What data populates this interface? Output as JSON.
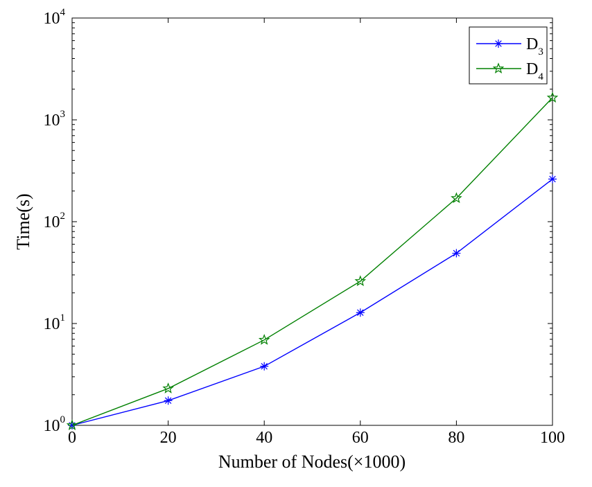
{
  "chart_data": {
    "type": "line",
    "xlabel": "Number of Nodes(×1000)",
    "ylabel": "Time(s)",
    "xlim": [
      0,
      100
    ],
    "ylim": [
      1,
      10000
    ],
    "y_scale": "log",
    "grid": false,
    "legend_position": "top-right",
    "x_ticks": [
      {
        "value": 0,
        "label": "0"
      },
      {
        "value": 20,
        "label": "20"
      },
      {
        "value": 40,
        "label": "40"
      },
      {
        "value": 60,
        "label": "60"
      },
      {
        "value": 80,
        "label": "80"
      },
      {
        "value": 100,
        "label": "100"
      }
    ],
    "y_ticks": [
      {
        "value": 1,
        "base": "10",
        "exp": "0"
      },
      {
        "value": 10,
        "base": "10",
        "exp": "1"
      },
      {
        "value": 100,
        "base": "10",
        "exp": "2"
      },
      {
        "value": 1000,
        "base": "10",
        "exp": "3"
      },
      {
        "value": 10000,
        "base": "10",
        "exp": "4"
      }
    ],
    "x": [
      0,
      20,
      40,
      60,
      80,
      100
    ],
    "series": [
      {
        "name": "D3",
        "name_main": "D",
        "name_sub": "3",
        "marker": "asterisk",
        "color": "#0000ff",
        "values": [
          1.0,
          1.75,
          3.8,
          12.8,
          49,
          262
        ]
      },
      {
        "name": "D4",
        "name_main": "D",
        "name_sub": "4",
        "marker": "star",
        "color": "#008000",
        "values": [
          1.0,
          2.3,
          6.9,
          26,
          170,
          1650
        ]
      }
    ]
  }
}
